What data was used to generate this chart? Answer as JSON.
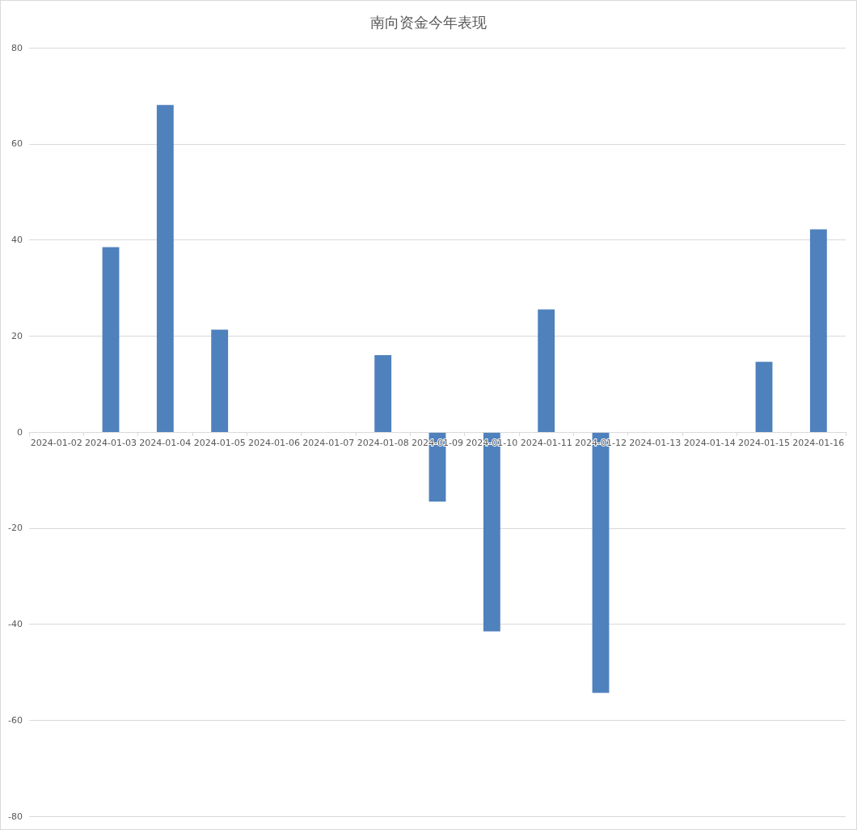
{
  "chart_data": {
    "type": "bar",
    "title": "南向资金今年表现",
    "categories": [
      "2024-01-02",
      "2024-01-03",
      "2024-01-04",
      "2024-01-05",
      "2024-01-06",
      "2024-01-07",
      "2024-01-08",
      "2024-01-09",
      "2024-01-10",
      "2024-01-11",
      "2024-01-12",
      "2024-01-13",
      "2024-01-14",
      "2024-01-15",
      "2024-01-16"
    ],
    "values": [
      null,
      38.5,
      68.1,
      21.3,
      null,
      null,
      16.0,
      -14.5,
      -41.5,
      25.5,
      -54.3,
      null,
      null,
      14.6,
      42.2
    ],
    "color": "#4f81bd",
    "ylim": [
      -80,
      80
    ],
    "yticks": [
      -80,
      -60,
      -40,
      -20,
      0,
      20,
      40,
      60,
      80
    ],
    "grid": "y"
  }
}
